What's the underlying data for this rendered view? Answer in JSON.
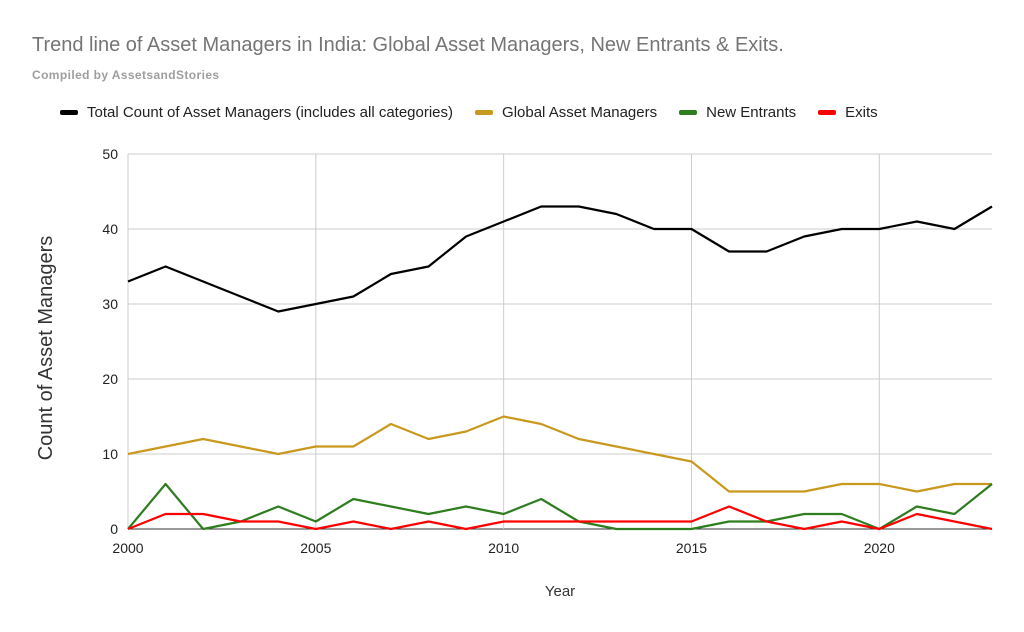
{
  "chart_data": {
    "type": "line",
    "title": "Trend line of Asset Managers in India: Global Asset Managers, New Entrants & Exits.",
    "subtitle": "Compiled by AssetsandStories",
    "xlabel": "Year",
    "ylabel": "Count of Asset Managers",
    "xlim": [
      2000,
      2023
    ],
    "ylim": [
      0,
      50
    ],
    "xticks": [
      2000,
      2005,
      2010,
      2015,
      2020
    ],
    "yticks": [
      0,
      10,
      20,
      30,
      40,
      50
    ],
    "grid": true,
    "legend_position": "top",
    "x": [
      2000,
      2001,
      2002,
      2003,
      2004,
      2005,
      2006,
      2007,
      2008,
      2009,
      2010,
      2011,
      2012,
      2013,
      2014,
      2015,
      2016,
      2017,
      2018,
      2019,
      2020,
      2021,
      2022,
      2023
    ],
    "series": [
      {
        "name": "Total Count of Asset Managers (includes all categories)",
        "color": "#000000",
        "values": [
          33,
          35,
          33,
          31,
          29,
          30,
          31,
          34,
          35,
          39,
          41,
          43,
          43,
          42,
          40,
          40,
          37,
          37,
          39,
          40,
          40,
          41,
          40,
          43
        ]
      },
      {
        "name": "Global Asset Managers",
        "color": "#c9991e",
        "values": [
          10,
          11,
          12,
          11,
          10,
          11,
          11,
          14,
          12,
          13,
          15,
          14,
          12,
          11,
          10,
          9,
          5,
          5,
          5,
          6,
          6,
          5,
          6,
          6
        ]
      },
      {
        "name": "New Entrants",
        "color": "#2e7d1f",
        "values": [
          0,
          6,
          0,
          1,
          3,
          1,
          4,
          3,
          2,
          3,
          2,
          4,
          1,
          0,
          0,
          0,
          1,
          1,
          2,
          2,
          0,
          3,
          2,
          6
        ]
      },
      {
        "name": "Exits",
        "color": "#ff0000",
        "values": [
          0,
          2,
          2,
          1,
          1,
          0,
          1,
          0,
          1,
          0,
          1,
          1,
          1,
          1,
          1,
          1,
          3,
          1,
          0,
          1,
          0,
          2,
          1,
          0
        ]
      }
    ]
  }
}
